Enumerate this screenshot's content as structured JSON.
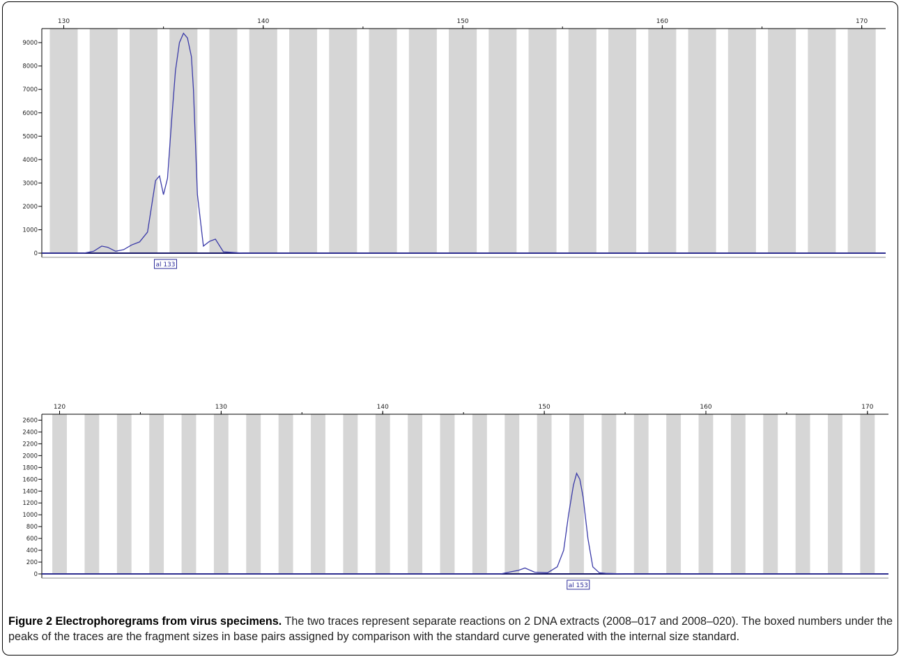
{
  "chart_data": [
    {
      "type": "line",
      "x_ticks": [
        "130",
        "140",
        "150",
        "160",
        "170"
      ],
      "y_ticks": [
        "0",
        "1000",
        "2000",
        "3000",
        "4000",
        "5000",
        "6000",
        "7000",
        "8000",
        "9000"
      ],
      "xlim": [
        128.9,
        171.2
      ],
      "ylim": [
        0,
        9600
      ],
      "bin_start": 130,
      "bin_step": 2,
      "bin_width": 1.4,
      "bin_count": 21,
      "peak_label": "al 133",
      "peak_x": 135.1,
      "series": [
        {
          "x": [
            128.9,
            130,
            131,
            131.5,
            131.9,
            132.2,
            132.6,
            133,
            133.4,
            133.8,
            134.2,
            134.4,
            134.6,
            134.8,
            135,
            135.2,
            135.4,
            135.6,
            135.8,
            136,
            136.2,
            136.4,
            136.5,
            136.7,
            137,
            137.3,
            137.6,
            138,
            139,
            141,
            144,
            148,
            151,
            160,
            171.2
          ],
          "y": [
            0,
            0,
            0,
            80,
            300,
            250,
            80,
            150,
            350,
            480,
            900,
            2000,
            3100,
            3300,
            2500,
            3200,
            5600,
            7800,
            9000,
            9400,
            9200,
            8400,
            7000,
            2500,
            300,
            500,
            600,
            60,
            0,
            0,
            0,
            0,
            0,
            0,
            0
          ]
        }
      ]
    },
    {
      "type": "line",
      "x_ticks": [
        "120",
        "130",
        "140",
        "150",
        "160",
        "170"
      ],
      "y_ticks": [
        "0",
        "200",
        "400",
        "600",
        "800",
        "1000",
        "1200",
        "1400",
        "1600",
        "1800",
        "2000",
        "2200",
        "2400",
        "2600"
      ],
      "xlim": [
        118.9,
        171.3
      ],
      "ylim": [
        0,
        2700
      ],
      "bin_start": 120,
      "bin_step": 2,
      "bin_width": 0.9,
      "bin_count": 26,
      "peak_label": "al 153",
      "peak_x": 152.1,
      "series": [
        {
          "x": [
            118.9,
            140,
            147.3,
            148,
            148.4,
            148.8,
            149.4,
            150.2,
            150.8,
            151.2,
            151.5,
            151.8,
            152,
            152.2,
            152.4,
            152.7,
            153,
            153.4,
            153.8,
            155,
            160,
            171.3
          ],
          "y": [
            0,
            0,
            0,
            40,
            60,
            100,
            30,
            20,
            120,
            400,
            1000,
            1500,
            1700,
            1600,
            1300,
            600,
            120,
            20,
            10,
            0,
            0,
            0
          ]
        }
      ]
    }
  ],
  "caption": {
    "bold": "Figure 2 Electrophoregrams from virus specimens.",
    "text": " The two traces represent separate reactions on 2 DNA extracts (2008–017 and 2008–020). The boxed numbers under the peaks of the traces are the fragment sizes in base pairs assigned by comparison with the standard curve generated with the internal size standard."
  },
  "colors": {
    "trace": "#3a3aa8",
    "bin": "#d6d6d6",
    "axis": "#000000",
    "baseline": "#1a1a6a",
    "peak_box": "#2a2a99"
  }
}
